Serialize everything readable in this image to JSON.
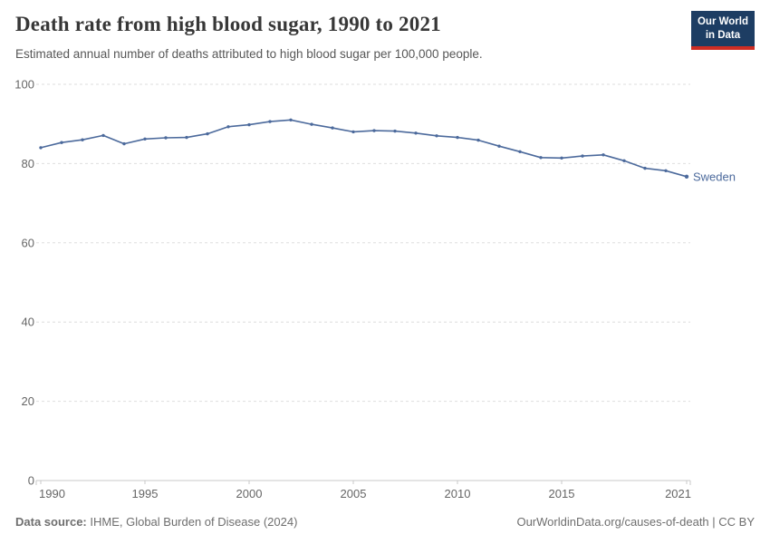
{
  "header": {
    "title": "Death rate from high blood sugar, 1990 to 2021",
    "subtitle": "Estimated annual number of deaths attributed to high blood sugar per 100,000 people.",
    "logo": {
      "line1": "Our World",
      "line2": "in Data",
      "bg_color": "#1d3d63",
      "accent_color": "#cf2d23"
    }
  },
  "chart_data": {
    "type": "line",
    "title": "Death rate from high blood sugar, 1990 to 2021",
    "subtitle": "Estimated annual number of deaths attributed to high blood sugar per 100,000 people.",
    "xlabel": "",
    "ylabel": "",
    "xlim": [
      1990,
      2021
    ],
    "ylim": [
      0,
      100
    ],
    "grid": "horizontal-dashed",
    "legend_position": "end-of-line-label",
    "x_ticks": [
      1990,
      1995,
      2000,
      2005,
      2010,
      2015,
      2021
    ],
    "y_ticks": [
      0,
      20,
      40,
      60,
      80,
      100
    ],
    "series": [
      {
        "name": "Sweden",
        "color": "#4c6a9c",
        "x": [
          1990,
          1991,
          1992,
          1993,
          1994,
          1995,
          1996,
          1997,
          1998,
          1999,
          2000,
          2001,
          2002,
          2003,
          2004,
          2005,
          2006,
          2007,
          2008,
          2009,
          2010,
          2011,
          2012,
          2013,
          2014,
          2015,
          2016,
          2017,
          2018,
          2019,
          2020,
          2021
        ],
        "values": [
          84.0,
          85.3,
          86.0,
          87.1,
          85.0,
          86.2,
          86.5,
          86.6,
          87.5,
          89.3,
          89.8,
          90.6,
          91.0,
          89.9,
          89.0,
          88.0,
          88.3,
          88.2,
          87.7,
          87.0,
          86.6,
          85.9,
          84.4,
          83.0,
          81.5,
          81.4,
          81.9,
          82.2,
          80.7,
          78.8,
          78.2,
          76.7
        ]
      }
    ]
  },
  "footer": {
    "source_label": "Data source:",
    "source_text": " IHME, Global Burden of Disease (2024)",
    "credit": "OurWorldinData.org/causes-of-death | CC BY"
  },
  "colors": {
    "line": "#4c6a9c",
    "gridline": "#dedede",
    "axis": "#c9c9c9",
    "tick_text": "#666666",
    "title_text": "#373737",
    "subtitle_text": "#575757",
    "footer_text": "#6e6e6e"
  }
}
